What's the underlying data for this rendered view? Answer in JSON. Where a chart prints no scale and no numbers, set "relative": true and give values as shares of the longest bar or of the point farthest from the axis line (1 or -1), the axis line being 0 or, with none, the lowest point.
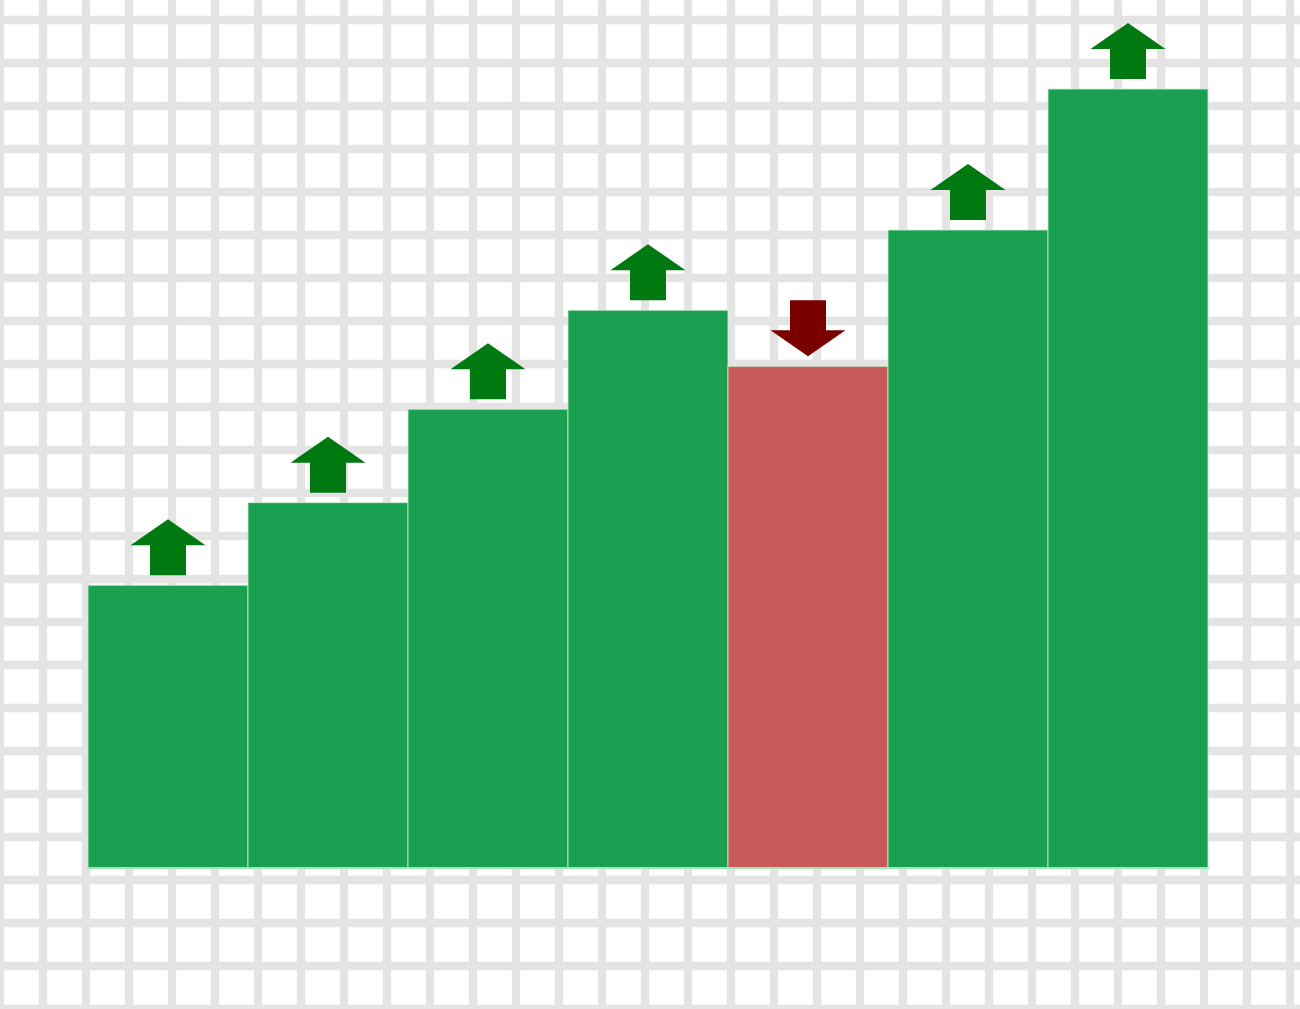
{
  "chart_data": {
    "type": "bar",
    "relative": true,
    "grid": true,
    "categories": [
      null,
      null,
      null,
      null,
      null,
      null,
      null
    ],
    "values": [
      0.363,
      0.469,
      0.589,
      0.716,
      0.644,
      0.819,
      1.0
    ],
    "colors": [
      "#1aa050",
      "#1aa050",
      "#1aa050",
      "#1aa050",
      "#c85a5a",
      "#1aa050",
      "#1aa050"
    ]
  }
}
